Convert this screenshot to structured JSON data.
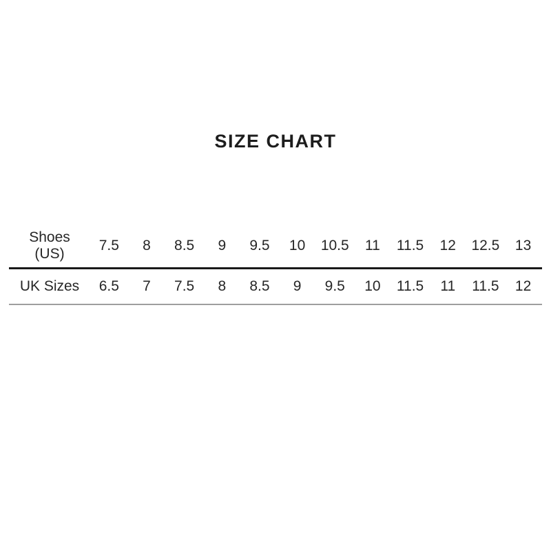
{
  "title": "SIZE CHART",
  "size_table": {
    "us_row": {
      "label_line1": "Shoes",
      "label_line2": "(US)",
      "values": [
        "7.5",
        "8",
        "8.5",
        "9",
        "9.5",
        "10",
        "10.5",
        "11",
        "11.5",
        "12",
        "12.5",
        "13"
      ]
    },
    "uk_row": {
      "label": "UK Sizes",
      "values": [
        "6.5",
        "7",
        "7.5",
        "8",
        "8.5",
        "9",
        "9.5",
        "10",
        "11.5",
        "11",
        "11.5",
        "12"
      ]
    }
  },
  "colors": {
    "background": "#ffffff",
    "text": "#262626",
    "title_text": "#1d1d1d",
    "thick_divider": "#191919",
    "thin_rule": "#9e9e9e"
  },
  "chart_data": {
    "type": "table",
    "title": "SIZE CHART",
    "row_headers": [
      "Shoes (US)",
      "UK Sizes"
    ],
    "rows": [
      [
        "7.5",
        "8",
        "8.5",
        "9",
        "9.5",
        "10",
        "10.5",
        "11",
        "11.5",
        "12",
        "12.5",
        "13"
      ],
      [
        "6.5",
        "7",
        "7.5",
        "8",
        "8.5",
        "9",
        "9.5",
        "10",
        "11.5",
        "11",
        "11.5",
        "12"
      ]
    ],
    "layout_hints": {
      "title_position": "top-center",
      "header_column": "left",
      "divider_between_rows": "thick-black",
      "rule_below_table": "thin-gray",
      "grid": "off"
    }
  }
}
